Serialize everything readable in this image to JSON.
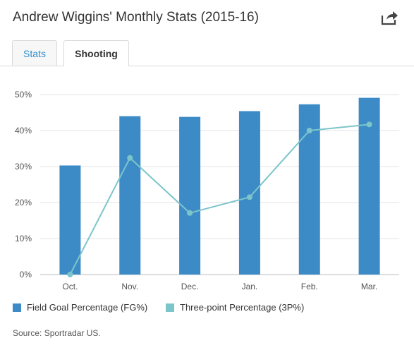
{
  "title": "Andrew Wiggins' Monthly Stats (2015-16)",
  "share_icon": "share-icon",
  "tabs": [
    {
      "label": "Stats",
      "active": false
    },
    {
      "label": "Shooting",
      "active": true
    }
  ],
  "source": "Source: Sportradar US.",
  "colors": {
    "bar": "#3c8bc7",
    "line": "#7cc5ca",
    "tab_link": "#2f8dcf",
    "grid": "#e3e3e3"
  },
  "chart_data": {
    "type": "bar",
    "categories": [
      "Oct.",
      "Nov.",
      "Dec.",
      "Jan.",
      "Feb.",
      "Mar."
    ],
    "series": [
      {
        "name": "Field Goal Percentage (FG%)",
        "type": "bar",
        "values": [
          30.3,
          44.0,
          43.8,
          45.4,
          47.3,
          49.1
        ]
      },
      {
        "name": "Three-point Percentage (3P%)",
        "type": "line",
        "values": [
          0.0,
          32.4,
          17.1,
          21.5,
          40.0,
          41.7
        ]
      }
    ],
    "ylim": [
      0,
      50
    ],
    "yticks": [
      "0%",
      "10%",
      "20%",
      "30%",
      "40%",
      "50%"
    ],
    "ytick_values": [
      0,
      10,
      20,
      30,
      40,
      50
    ],
    "grid": true,
    "legend_position": "bottom-left"
  }
}
